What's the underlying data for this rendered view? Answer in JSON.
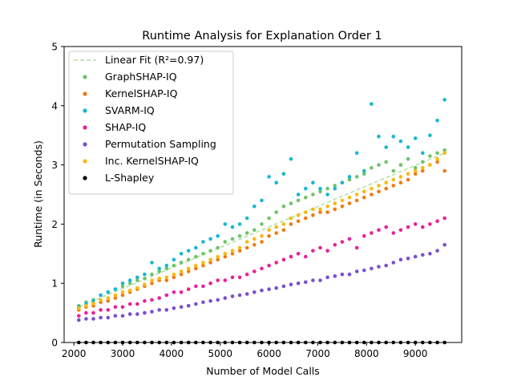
{
  "chart_data": {
    "type": "scatter",
    "title": "Runtime Analysis for Explanation Order 1",
    "xlabel": "Number of Model Calls",
    "ylabel": "Runtime (in Seconds)",
    "xlim": [
      1800,
      9950
    ],
    "ylim": [
      0,
      5
    ],
    "x_ticks": [
      2000,
      3000,
      4000,
      5000,
      6000,
      7000,
      8000,
      9000
    ],
    "x_tick_labels": [
      "2000",
      "3000",
      "4000",
      "5000",
      "6000",
      "7000",
      "8000",
      "9000"
    ],
    "y_ticks": [
      0,
      1,
      2,
      3,
      4,
      5
    ],
    "y_tick_labels": [
      "0",
      "1",
      "2",
      "3",
      "4",
      "5"
    ],
    "grid": false,
    "legend_position": "top-left",
    "fit": {
      "label": "Linear Fit (R²=0.97)",
      "color": "#b2dfa3",
      "x": [
        2100,
        9600
      ],
      "y": [
        0.6,
        3.2
      ]
    },
    "x_samples": [
      2100,
      2250,
      2400,
      2550,
      2700,
      2850,
      3000,
      3150,
      3300,
      3450,
      3600,
      3750,
      3900,
      4050,
      4200,
      4350,
      4500,
      4650,
      4800,
      4950,
      5100,
      5250,
      5400,
      5550,
      5700,
      5850,
      6000,
      6150,
      6300,
      6450,
      6600,
      6750,
      6900,
      7050,
      7200,
      7350,
      7500,
      7650,
      7800,
      7950,
      8100,
      8250,
      8400,
      8550,
      8700,
      8850,
      9000,
      9150,
      9300,
      9450,
      9600
    ],
    "series": [
      {
        "name": "GraphSHAP-IQ",
        "color": "#6dc46a",
        "y": [
          0.62,
          0.68,
          0.72,
          0.8,
          0.85,
          0.9,
          0.95,
          1.0,
          1.05,
          1.08,
          1.15,
          1.2,
          1.25,
          1.3,
          1.35,
          1.4,
          1.45,
          1.5,
          1.55,
          1.6,
          1.7,
          1.75,
          1.8,
          1.85,
          1.9,
          2.0,
          2.1,
          2.2,
          2.3,
          2.35,
          2.4,
          2.45,
          2.5,
          2.55,
          2.6,
          2.65,
          2.7,
          2.75,
          2.8,
          2.85,
          2.95,
          3.0,
          3.05,
          2.9,
          3.0,
          3.1,
          2.95,
          3.05,
          3.15,
          3.2,
          3.25
        ]
      },
      {
        "name": "KernelSHAP-IQ",
        "color": "#f07a10",
        "y": [
          0.55,
          0.6,
          0.62,
          0.68,
          0.7,
          0.75,
          0.8,
          0.85,
          0.9,
          0.95,
          1.0,
          1.05,
          1.05,
          1.1,
          1.15,
          1.2,
          1.25,
          1.3,
          1.35,
          1.4,
          1.45,
          1.5,
          1.55,
          1.6,
          1.65,
          1.7,
          1.8,
          1.85,
          1.9,
          2.0,
          2.05,
          2.1,
          2.15,
          2.2,
          2.2,
          2.25,
          2.3,
          2.35,
          2.4,
          2.45,
          2.5,
          2.55,
          2.6,
          2.65,
          2.7,
          2.75,
          2.85,
          2.9,
          3.0,
          3.05,
          2.9
        ]
      },
      {
        "name": "SVARM-IQ",
        "color": "#17b8ce",
        "y": [
          0.6,
          0.65,
          0.7,
          0.8,
          0.85,
          0.9,
          1.0,
          1.05,
          1.1,
          1.15,
          1.35,
          1.25,
          1.3,
          1.4,
          1.5,
          1.55,
          1.6,
          1.7,
          1.75,
          1.8,
          2.0,
          1.95,
          2.0,
          2.1,
          2.3,
          2.4,
          2.8,
          2.7,
          2.85,
          3.1,
          2.5,
          2.6,
          2.7,
          2.6,
          2.5,
          2.6,
          2.7,
          2.8,
          3.2,
          2.9,
          4.03,
          3.48,
          3.3,
          3.48,
          3.4,
          3.3,
          3.45,
          3.2,
          3.5,
          3.75,
          4.1
        ]
      },
      {
        "name": "SHAP-IQ",
        "color": "#e8219a",
        "y": [
          0.45,
          0.5,
          0.5,
          0.55,
          0.55,
          0.6,
          0.6,
          0.65,
          0.65,
          0.7,
          0.72,
          0.75,
          0.8,
          0.85,
          0.85,
          0.9,
          0.95,
          0.95,
          1.0,
          1.05,
          1.05,
          1.1,
          1.1,
          1.15,
          1.2,
          1.25,
          1.3,
          1.35,
          1.4,
          1.45,
          1.5,
          1.45,
          1.55,
          1.6,
          1.55,
          1.65,
          1.7,
          1.75,
          1.6,
          1.8,
          1.85,
          1.9,
          1.95,
          1.85,
          1.9,
          1.95,
          2.0,
          1.95,
          2.0,
          2.05,
          2.1
        ]
      },
      {
        "name": "Permutation Sampling",
        "color": "#7b4fcf",
        "y": [
          0.38,
          0.4,
          0.4,
          0.42,
          0.42,
          0.45,
          0.45,
          0.48,
          0.48,
          0.5,
          0.52,
          0.55,
          0.55,
          0.58,
          0.6,
          0.62,
          0.65,
          0.68,
          0.7,
          0.72,
          0.75,
          0.78,
          0.8,
          0.82,
          0.85,
          0.88,
          0.9,
          0.92,
          0.95,
          0.98,
          1.0,
          1.02,
          1.05,
          1.05,
          1.1,
          1.12,
          1.15,
          1.15,
          1.2,
          1.22,
          1.25,
          1.28,
          1.3,
          1.35,
          1.4,
          1.42,
          1.45,
          1.48,
          1.5,
          1.55,
          1.65
        ]
      },
      {
        "name": "Inc. KernelSHAP-IQ",
        "color": "#fbb80f",
        "y": [
          0.58,
          0.62,
          0.66,
          0.72,
          0.75,
          0.8,
          0.85,
          0.88,
          0.92,
          0.98,
          1.05,
          1.08,
          1.1,
          1.15,
          1.2,
          1.25,
          1.3,
          1.35,
          1.4,
          1.45,
          1.5,
          1.55,
          1.6,
          1.7,
          1.75,
          1.8,
          1.9,
          1.95,
          2.0,
          2.1,
          2.15,
          2.2,
          2.25,
          2.25,
          2.3,
          2.35,
          2.4,
          2.45,
          2.5,
          2.55,
          2.6,
          2.65,
          2.7,
          2.75,
          2.8,
          2.85,
          2.9,
          2.95,
          3.0,
          3.1,
          3.2
        ]
      },
      {
        "name": "L-Shapley",
        "color": "#000000",
        "y": [
          0.0,
          0.0,
          0.0,
          0.0,
          0.0,
          0.0,
          0.0,
          0.0,
          0.0,
          0.0,
          0.0,
          0.0,
          0.0,
          0.0,
          0.0,
          0.0,
          0.0,
          0.0,
          0.0,
          0.0,
          0.0,
          0.0,
          0.0,
          0.0,
          0.0,
          0.0,
          0.0,
          0.0,
          0.0,
          0.0,
          0.0,
          0.0,
          0.0,
          0.0,
          0.0,
          0.0,
          0.0,
          0.0,
          0.0,
          0.0,
          0.0,
          0.0,
          0.0,
          0.0,
          0.0,
          0.0,
          0.0,
          0.0,
          0.0,
          0.0,
          0.0
        ]
      }
    ]
  }
}
